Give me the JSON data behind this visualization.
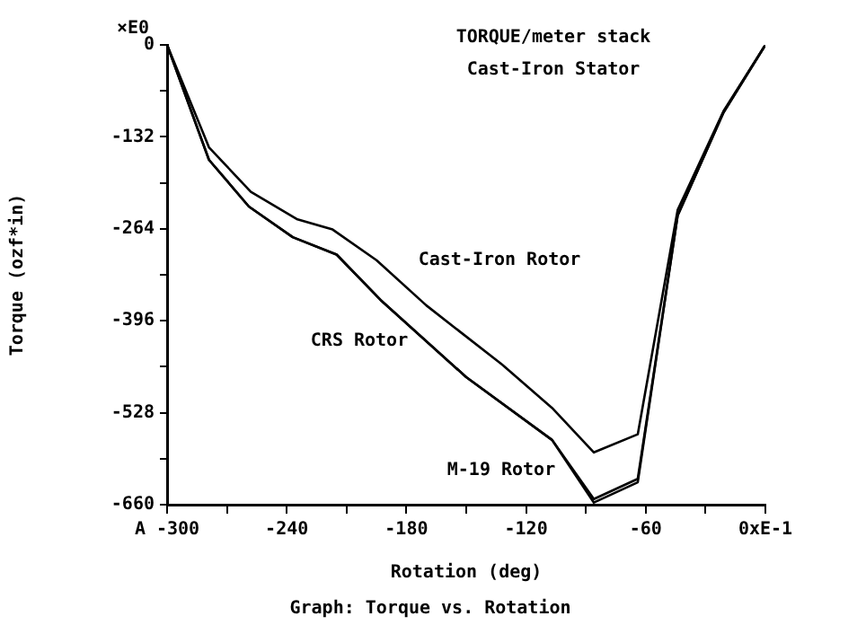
{
  "chart_data": {
    "type": "line",
    "title": "TORQUE/meter stack",
    "subtitle": "Cast-Iron Stator",
    "xlabel": "Rotation (deg)",
    "ylabel": "Torque (ozf*in)",
    "annotations": [
      "×E0",
      "Graph: Torque vs. Rotation"
    ],
    "xlim": [
      -300,
      0
    ],
    "xticks": [
      {
        "value": -300,
        "label": "A -300"
      },
      {
        "value": -270,
        "label": null
      },
      -240,
      {
        "value": -210,
        "label": null
      },
      -180,
      {
        "value": -150,
        "label": null
      },
      -120,
      {
        "value": -90,
        "label": null
      },
      -60,
      {
        "value": -30,
        "label": null
      },
      {
        "value": 0,
        "label": "0xE-1"
      }
    ],
    "ylim": [
      -660,
      0
    ],
    "yticks": [
      -660,
      {
        "value": -594,
        "label": null
      },
      -528,
      {
        "value": -462,
        "label": null
      },
      -396,
      {
        "value": -330,
        "label": null
      },
      -264,
      {
        "value": -198,
        "label": null
      },
      -132,
      {
        "value": -66,
        "label": null
      },
      0
    ],
    "grid": false,
    "legend": false,
    "marker": "none",
    "line_style": "solid",
    "series": [
      {
        "name": "Cast-Iron Rotor",
        "color": "#000000",
        "x": [
          -300,
          -279,
          -258,
          -235,
          -217,
          -195,
          -170,
          -132,
          -107,
          -86,
          -64,
          -44,
          -21,
          0
        ],
        "values": [
          0,
          -147,
          -211,
          -250,
          -265,
          -309,
          -374,
          -459,
          -521,
          -585,
          -559,
          -237,
          -95,
          0
        ]
      },
      {
        "name": "CRS Rotor",
        "color": "#000000",
        "x": [
          -300,
          -279,
          -259,
          -237,
          -215,
          -193,
          -150,
          -107,
          -86,
          -64,
          -44,
          -21,
          0
        ],
        "values": [
          0,
          -165,
          -232,
          -276,
          -301,
          -366,
          -477,
          -567,
          -652,
          -623,
          -245,
          -97,
          0
        ]
      },
      {
        "name": "M-19 Rotor",
        "color": "#000000",
        "x": [
          -300,
          -279,
          -259,
          -237,
          -215,
          -193,
          -150,
          -107,
          -86,
          -64,
          -44,
          -21,
          0
        ],
        "values": [
          0,
          -165,
          -232,
          -276,
          -301,
          -366,
          -477,
          -567,
          -657,
          -628,
          -245,
          -97,
          0
        ]
      }
    ]
  }
}
